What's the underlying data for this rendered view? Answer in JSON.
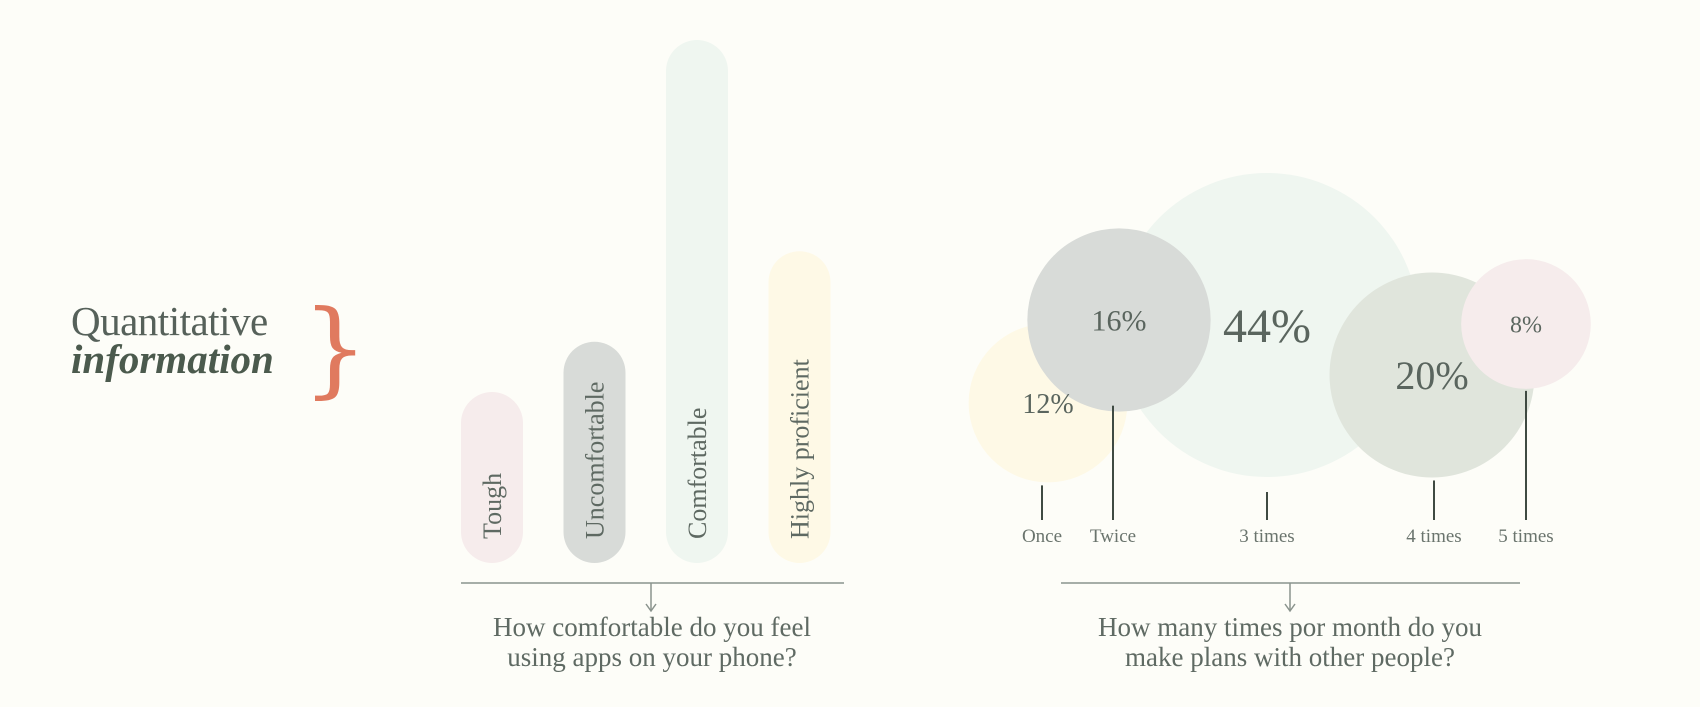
{
  "heading": {
    "line1": "Quantitative",
    "line2": "information"
  },
  "colors": {
    "pink": "#f6ecec",
    "gray": "#d8dbd8",
    "mint": "#eff6f0",
    "yellow": "#fef9e6",
    "sage": "#e0e5dc",
    "text": "#4f5a52",
    "line": "#8a938d",
    "accent": "#e07a5f"
  },
  "chart_data": [
    {
      "type": "bar",
      "question_line1": "How comfortable do you feel",
      "question_line2": "using apps on your phone?",
      "categories": [
        "Tough",
        "Uncomfortable",
        "Comfortable",
        "Highly proficient"
      ],
      "values": [
        17,
        22,
        52,
        31
      ],
      "colors": [
        "pink",
        "gray",
        "mint",
        "yellow"
      ]
    },
    {
      "type": "bubble",
      "question_line1": "How many times por month do you",
      "question_line2": "make plans with other people?",
      "categories": [
        "Once",
        "Twice",
        "3 times",
        "4 times",
        "5 times"
      ],
      "values": [
        12,
        16,
        44,
        20,
        8
      ],
      "labels": [
        "12%",
        "16%",
        "44%",
        "20%",
        "8%"
      ],
      "colors": [
        "yellow",
        "gray",
        "mint",
        "sage",
        "pink"
      ]
    }
  ]
}
